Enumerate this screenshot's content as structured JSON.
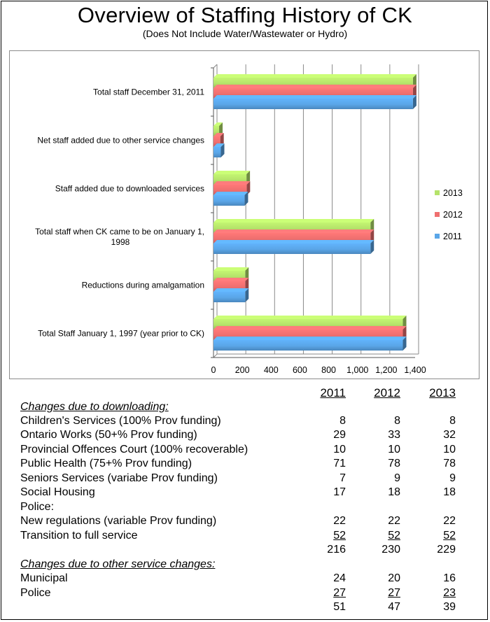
{
  "title": "Overview of Staffing History of CK",
  "subtitle": "(Does Not Include Water/Wastewater or Hydro)",
  "chart_data": {
    "type": "bar",
    "orientation": "horizontal",
    "categories": [
      "Total staff December 31, 2011",
      "Net staff added due to other service changes",
      "Staff added due to downloaded services",
      "Total staff when CK came to be on January 1, 1998",
      "Reductions during amalgamation",
      "Total Staff January 1, 1997 (year prior to CK)"
    ],
    "category_lines": [
      [
        "Total staff December 31, 2011"
      ],
      [
        "Net staff added due to other service changes"
      ],
      [
        "Staff added due to downloaded services"
      ],
      [
        "Total staff when CK came to be on January 1,",
        "1998"
      ],
      [
        "Reductions during amalgamation"
      ],
      [
        "Total Staff January 1, 1997 (year prior to CK)"
      ]
    ],
    "series": [
      {
        "name": "2013",
        "color": "#b5e36a",
        "values": [
          1385,
          39,
          229,
          1090,
          220,
          1315
        ]
      },
      {
        "name": "2012",
        "color": "#ef6f6f",
        "values": [
          1385,
          47,
          230,
          1090,
          220,
          1315
        ]
      },
      {
        "name": "2011",
        "color": "#5aa6e8",
        "values": [
          1385,
          51,
          216,
          1090,
          220,
          1315
        ]
      }
    ],
    "xlim": [
      0,
      1400
    ],
    "xticks": [
      "0",
      "200",
      "400",
      "600",
      "800",
      "1,000",
      "1,200",
      "1,400"
    ],
    "grid": true,
    "legend_position": "right",
    "title": "Overview of Staffing History of CK",
    "xlabel": "",
    "ylabel": ""
  },
  "table": {
    "years": [
      "2011",
      "2012",
      "2013"
    ],
    "rows": [
      {
        "label": "Changes due to downloading:",
        "style": "section"
      },
      {
        "label": "Children's Services (100% Prov funding)",
        "values": [
          "8",
          "8",
          "8"
        ]
      },
      {
        "label": "Ontario Works (50+% Prov funding)",
        "values": [
          "29",
          "33",
          "32"
        ]
      },
      {
        "label": "Provincial Offences Court (100% recoverable)",
        "values": [
          "10",
          "10",
          "10"
        ]
      },
      {
        "label": "Public Health (75+% Prov funding)",
        "values": [
          "71",
          "78",
          "78"
        ]
      },
      {
        "label": "Seniors Services (variabe Prov funding)",
        "values": [
          "7",
          "9",
          "9"
        ]
      },
      {
        "label": "Social Housing",
        "values": [
          "17",
          "18",
          "18"
        ]
      },
      {
        "label": "Police:",
        "values": [
          "",
          "",
          ""
        ]
      },
      {
        "label": "New regulations (variable Prov funding)",
        "values": [
          "22",
          "22",
          "22"
        ]
      },
      {
        "label": "Transition to full service",
        "values": [
          "52",
          "52",
          "52"
        ],
        "underline": true
      },
      {
        "label": "",
        "values": [
          "216",
          "230",
          "229"
        ]
      },
      {
        "label": "Changes due to other service changes:",
        "style": "section"
      },
      {
        "label": "Municipal",
        "values": [
          "24",
          "20",
          "16"
        ]
      },
      {
        "label": "Police",
        "values": [
          "27",
          "27",
          "23"
        ],
        "underline": true
      },
      {
        "label": "",
        "values": [
          "51",
          "47",
          "39"
        ]
      }
    ]
  }
}
